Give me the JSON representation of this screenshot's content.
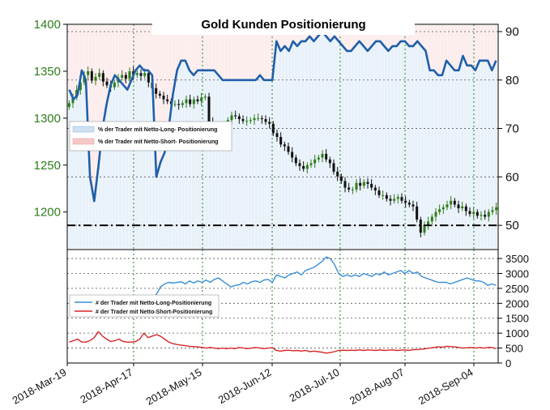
{
  "chart_data": [
    {
      "type": "line",
      "title": "Gold Kunden Positionierung",
      "x_ticks": [
        "2018-Mar-19",
        "2018-Apr-17",
        "2018-May-15",
        "2018-Jun-12",
        "2018-Jul-10",
        "2018-Aug-07",
        "2018-Sep-04"
      ],
      "left_axis": {
        "ticks": [
          "1400",
          "1350",
          "1300",
          "1250",
          "1200"
        ],
        "ylim": [
          1160,
          1400
        ],
        "color": "#2e7d1a"
      },
      "right_axis": {
        "ticks": [
          "90",
          "80",
          "70",
          "60",
          "50"
        ],
        "ylim": [
          45,
          91.5
        ]
      },
      "reference_line": {
        "value": 50,
        "style": "dash-dot",
        "color": "#000000"
      },
      "legend": [
        {
          "label": "% der Trader  mit  Netto-Long-  Positionierung",
          "color": "#cfe0f2"
        },
        {
          "label": "% der Trader  mit  Netto-Short-  Positionierung",
          "color": "#f6c7c7"
        }
      ],
      "series": [
        {
          "name": "% der Trader  mit  Netto-Long-  Positionierung",
          "axis": "right",
          "color": "#1f5fa8",
          "values": [
            78,
            76,
            77,
            82,
            80,
            60,
            55,
            62,
            70,
            75,
            79,
            81,
            80,
            79,
            78,
            80,
            82,
            83,
            82,
            82,
            81,
            60,
            63,
            65,
            70,
            77,
            82,
            84,
            84,
            82,
            81,
            82,
            82,
            82,
            82,
            82,
            81,
            80,
            80,
            80,
            80,
            80,
            80,
            80,
            80,
            80,
            81,
            80,
            80,
            80,
            88,
            86,
            87,
            86,
            88,
            87,
            88,
            88,
            89,
            88,
            89,
            90,
            89,
            88,
            89,
            88,
            87,
            86,
            86,
            87,
            88,
            87,
            86,
            87,
            88,
            88,
            87,
            86,
            87,
            87,
            88,
            88,
            87,
            87,
            88,
            87,
            86,
            82,
            82,
            81,
            81,
            84,
            83,
            82,
            82,
            85,
            83,
            83,
            82,
            84,
            84,
            84,
            82,
            84
          ]
        }
      ],
      "candles": {
        "axis": "left",
        "up_color": "#2e7d1a",
        "down_color": "#111111",
        "closes": [
          1316,
          1322,
          1330,
          1338,
          1346,
          1350,
          1340,
          1344,
          1348,
          1339,
          1335,
          1333,
          1338,
          1343,
          1346,
          1342,
          1350,
          1346,
          1348,
          1345,
          1348,
          1338,
          1332,
          1326,
          1324,
          1320,
          1318,
          1315,
          1315,
          1314,
          1316,
          1320,
          1315,
          1320,
          1318,
          1322,
          1323,
          1296,
          1290,
          1290,
          1291,
          1292,
          1298,
          1303,
          1302,
          1299,
          1297,
          1297,
          1298,
          1300,
          1300,
          1299,
          1296,
          1294,
          1284,
          1280,
          1272,
          1270,
          1264,
          1258,
          1252,
          1249,
          1246,
          1250,
          1252,
          1256,
          1258,
          1262,
          1256,
          1252,
          1243,
          1238,
          1233,
          1226,
          1224,
          1224,
          1231,
          1228,
          1232,
          1230,
          1226,
          1223,
          1218,
          1218,
          1214,
          1212,
          1214,
          1216,
          1212,
          1210,
          1208,
          1206,
          1192,
          1178,
          1186,
          1190,
          1195,
          1200,
          1203,
          1205,
          1208,
          1212,
          1208,
          1204,
          1206,
          1201,
          1198,
          1200,
          1196,
          1197,
          1195,
          1200,
          1202,
          1205
        ]
      }
    },
    {
      "type": "line",
      "right_axis": {
        "ticks": [
          "3500",
          "3000",
          "2500",
          "2000",
          "1500",
          "1000",
          "500",
          "0"
        ],
        "ylim": [
          0,
          3800
        ]
      },
      "legend": [
        {
          "label": "# der Trader  mit  Netto-Long-Positionierung",
          "color": "#3a8fd8"
        },
        {
          "label": "# der Trader  mit  Netto-Short-Positionierung",
          "color": "#d62728"
        }
      ],
      "series": [
        {
          "name": "# der Trader  mit  Netto-Long-Positionierung",
          "color": "#3a8fd8",
          "values": [
            1900,
            1950,
            2000,
            2000,
            2000,
            2000,
            2000,
            2000,
            2000,
            2000,
            2000,
            2000,
            2000,
            2000,
            2000,
            2000,
            2050,
            2100,
            2150,
            2200,
            2200,
            2300,
            2550,
            2650,
            2700,
            2680,
            2700,
            2720,
            2650,
            2750,
            2680,
            2750,
            2700,
            2780,
            2700,
            2800,
            2850,
            2750,
            2650,
            2550,
            2600,
            2620,
            2700,
            2650,
            2720,
            2750,
            2700,
            2780,
            2800,
            2700,
            2950,
            2900,
            2850,
            2950,
            3000,
            3050,
            2950,
            3100,
            3150,
            3200,
            3300,
            3400,
            3550,
            3500,
            3300,
            3000,
            2900,
            2950,
            2900,
            2950,
            2900,
            3000,
            2950,
            2900,
            3000,
            2950,
            3050,
            2950,
            3000,
            3050,
            3100,
            3000,
            3100,
            3000,
            3050,
            2900,
            2850,
            2800,
            2750,
            2700,
            2700,
            2700,
            2650,
            2700,
            2750,
            2800,
            2850,
            2800,
            2750,
            2750,
            2700,
            2600,
            2650,
            2600
          ]
        },
        {
          "name": "# der Trader  mit  Netto-Short-Positionierung",
          "color": "#d62728",
          "values": [
            700,
            750,
            800,
            700,
            700,
            750,
            850,
            1050,
            900,
            800,
            720,
            750,
            800,
            720,
            700,
            700,
            720,
            800,
            1000,
            850,
            900,
            950,
            900,
            800,
            700,
            650,
            620,
            600,
            580,
            560,
            550,
            540,
            520,
            500,
            520,
            500,
            480,
            500,
            480,
            500,
            480,
            520,
            500,
            480,
            500,
            520,
            500,
            480,
            500,
            510,
            420,
            400,
            420,
            430,
            410,
            420,
            400,
            420,
            380,
            400,
            380,
            360,
            330,
            350,
            380,
            420,
            430,
            420,
            430,
            420,
            440,
            420,
            440,
            430,
            420,
            440,
            420,
            430,
            440,
            420,
            430,
            440,
            420,
            450,
            450,
            460,
            480,
            500,
            520,
            540,
            530,
            560,
            550,
            540,
            520,
            500,
            510,
            520,
            500,
            520,
            500,
            520,
            520,
            480
          ]
        }
      ]
    }
  ]
}
